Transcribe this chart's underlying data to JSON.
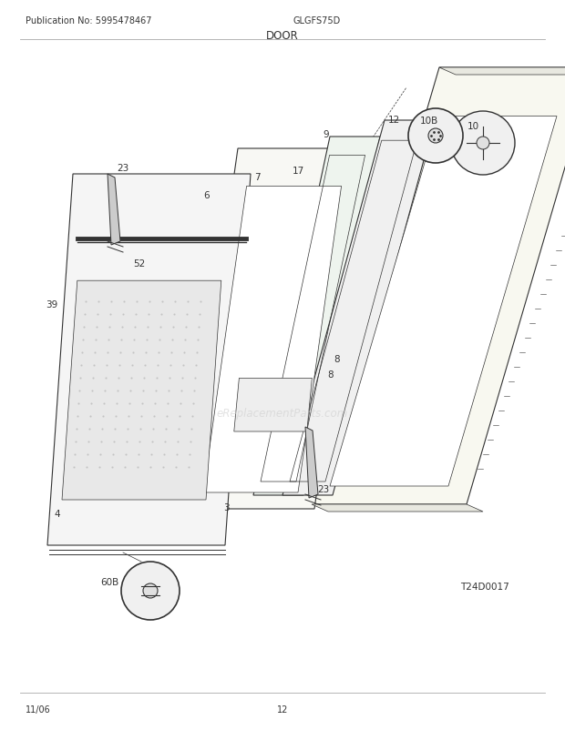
{
  "pub_no": "Publication No: 5995478467",
  "model": "GLGFS75D",
  "section": "DOOR",
  "date": "11/06",
  "page": "12",
  "diagram_id": "T24D0017",
  "bg_color": "#ffffff",
  "line_color": "#333333",
  "text_color": "#333333",
  "watermark": "eReplacementParts.com",
  "header_fontsize": 7,
  "title_fontsize": 8.5,
  "footer_fontsize": 7,
  "label_fontsize": 7.5
}
